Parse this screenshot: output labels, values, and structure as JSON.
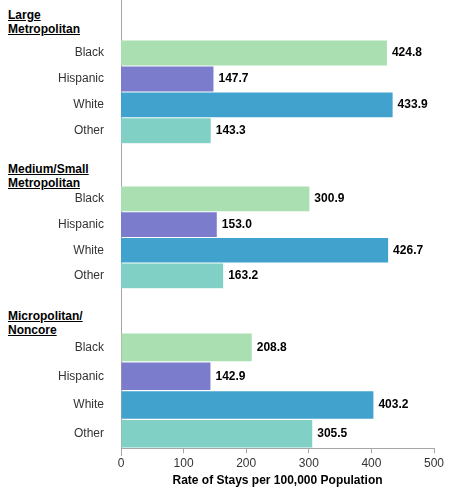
{
  "chart_data": [
    {
      "type": "bar",
      "orientation": "horizontal",
      "title": "Large Metropolitan",
      "categories": [
        "Black",
        "Hispanic",
        "White",
        "Other"
      ],
      "values": [
        424.8,
        147.7,
        433.9,
        143.3
      ],
      "value_labels": [
        "424.8",
        "147.7",
        "433.9",
        "143.3"
      ],
      "colors": [
        "#a9dfb1",
        "#7b7dcc",
        "#41a2cd",
        "#80d0c6"
      ],
      "xlim": [
        0,
        500
      ],
      "grid": false,
      "data_labels": true,
      "tick_labels": "y"
    },
    {
      "type": "bar",
      "orientation": "horizontal",
      "title": "Medium/Small Metropolitan",
      "categories": [
        "Black",
        "Hispanic",
        "White",
        "Other"
      ],
      "values": [
        300.9,
        153.0,
        426.7,
        163.2
      ],
      "value_labels": [
        "300.9",
        "153.0",
        "426.7",
        "163.2"
      ],
      "colors": [
        "#a9dfb1",
        "#7b7dcc",
        "#41a2cd",
        "#80d0c6"
      ],
      "xlim": [
        0,
        500
      ],
      "grid": false,
      "data_labels": true,
      "tick_labels": "y"
    },
    {
      "type": "bar",
      "orientation": "horizontal",
      "title": "Micropolitan/ Noncore",
      "categories": [
        "Black",
        "Hispanic",
        "White",
        "Other"
      ],
      "values": [
        208.8,
        142.9,
        403.2,
        305.5
      ],
      "value_labels": [
        "208.8",
        "142.9",
        "403.2",
        "305.5"
      ],
      "colors": [
        "#a9dfb1",
        "#7b7dcc",
        "#41a2cd",
        "#80d0c6"
      ],
      "xlabel": "Rate of Stays per 100,000 Population",
      "xlim": [
        0,
        500
      ],
      "xticks": [
        0,
        100,
        200,
        300,
        400,
        500
      ],
      "grid": false,
      "data_labels": true,
      "tick_labels": true
    }
  ]
}
